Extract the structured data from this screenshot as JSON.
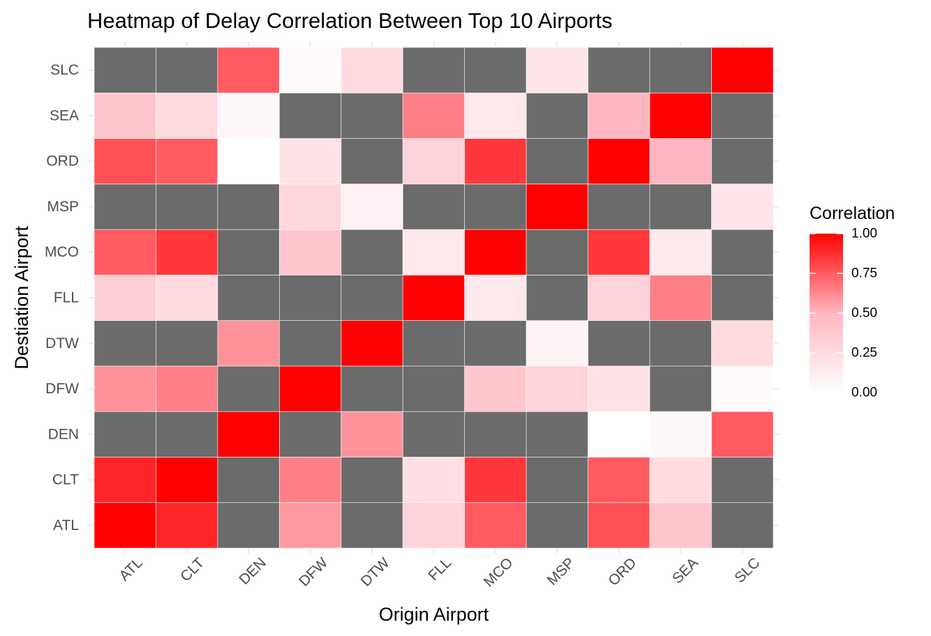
{
  "chart_data": {
    "type": "heatmap",
    "title": "Heatmap of Delay Correlation Between Top 10 Airports",
    "xlabel": "Origin Airport",
    "ylabel": "Destiation Airport",
    "x_categories": [
      "ATL",
      "CLT",
      "DEN",
      "DFW",
      "DTW",
      "FLL",
      "MCO",
      "MSP",
      "ORD",
      "SEA",
      "SLC"
    ],
    "y_categories": [
      "ATL",
      "CLT",
      "DEN",
      "DFW",
      "DTW",
      "FLL",
      "MCO",
      "MSP",
      "ORD",
      "SEA",
      "SLC"
    ],
    "values": [
      [
        1.0,
        0.9,
        null,
        0.58,
        null,
        0.3,
        0.75,
        null,
        0.78,
        0.4,
        null
      ],
      [
        0.9,
        1.0,
        null,
        0.65,
        null,
        0.22,
        0.85,
        null,
        0.75,
        0.25,
        null
      ],
      [
        null,
        null,
        1.0,
        null,
        0.6,
        null,
        null,
        null,
        0.0,
        0.05,
        0.75
      ],
      [
        0.6,
        0.65,
        null,
        1.0,
        null,
        null,
        0.4,
        0.3,
        0.2,
        null,
        0.03
      ],
      [
        null,
        null,
        0.6,
        null,
        1.0,
        null,
        null,
        0.08,
        null,
        null,
        0.25
      ],
      [
        0.33,
        0.25,
        null,
        null,
        null,
        1.0,
        0.15,
        null,
        0.3,
        0.65,
        null
      ],
      [
        0.75,
        0.85,
        null,
        0.4,
        null,
        0.15,
        1.0,
        null,
        0.85,
        0.15,
        null
      ],
      [
        null,
        null,
        null,
        0.28,
        0.1,
        null,
        null,
        1.0,
        null,
        null,
        0.18
      ],
      [
        0.78,
        0.75,
        0.0,
        0.2,
        null,
        0.3,
        0.85,
        null,
        1.0,
        0.5,
        null
      ],
      [
        0.4,
        0.25,
        0.05,
        null,
        null,
        0.65,
        0.15,
        null,
        0.5,
        1.0,
        null
      ],
      [
        null,
        null,
        0.75,
        0.03,
        0.25,
        null,
        null,
        0.18,
        null,
        null,
        1.0
      ]
    ],
    "na_color": "#6b6b6b",
    "scale": {
      "low_color": "#ffffff",
      "mid_color": "#ffb6c1",
      "high_color": "#ff0000",
      "min": 0,
      "max": 1
    },
    "legend": {
      "title": "Correlation",
      "ticks": [
        "1.00",
        "0.75",
        "0.50",
        "0.25",
        "0.00"
      ],
      "tick_values": [
        1.0,
        0.75,
        0.5,
        0.25,
        0.0
      ],
      "placement": "right"
    },
    "grid": true
  }
}
